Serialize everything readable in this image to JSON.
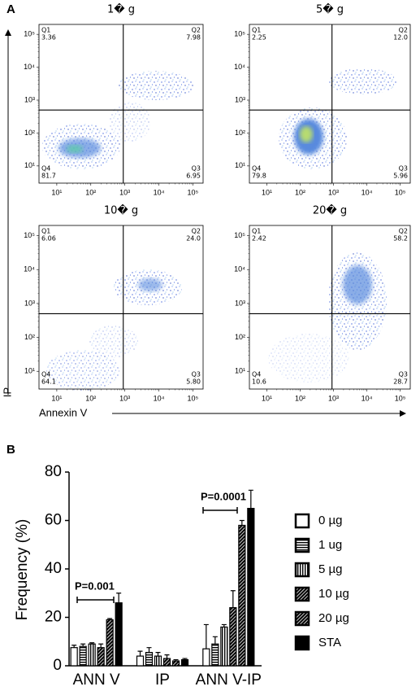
{
  "panel_labels": [
    "A",
    "B"
  ],
  "shared_axes": {
    "x_label": "Annexin V",
    "y_label": "IP"
  },
  "chart_data": [
    {
      "type": "quadrant",
      "title": "1� g",
      "xscale": "log",
      "yscale": "log",
      "xlim": [
        3,
        200000
      ],
      "ylim": [
        3,
        200000
      ],
      "xticks": [
        {
          "value": 10,
          "label": "10¹"
        },
        {
          "value": 100,
          "label": "10²"
        },
        {
          "value": 1000,
          "label": "10³"
        },
        {
          "value": 10000,
          "label": "10⁴"
        },
        {
          "value": 100000,
          "label": "10⁵"
        }
      ],
      "yticks": [
        {
          "value": 10,
          "label": "10¹"
        },
        {
          "value": 100,
          "label": "10²"
        },
        {
          "value": 1000,
          "label": "10³"
        },
        {
          "value": 10000,
          "label": "10⁴"
        },
        {
          "value": 100000,
          "label": "10⁵"
        }
      ],
      "xgate": 900,
      "ygate": 500,
      "categories": [
        "Q1",
        "Q2",
        "Q3",
        "Q4"
      ],
      "values": [
        3.36,
        7.98,
        6.95,
        81.7
      ],
      "value_labels": [
        "3.36",
        "7.98",
        "6.95",
        "81.7"
      ]
    },
    {
      "type": "quadrant",
      "title": "5� g",
      "xscale": "log",
      "yscale": "log",
      "xlim": [
        3,
        200000
      ],
      "ylim": [
        3,
        200000
      ],
      "xticks": [
        {
          "value": 10,
          "label": "10¹"
        },
        {
          "value": 100,
          "label": "10²"
        },
        {
          "value": 1000,
          "label": "10³"
        },
        {
          "value": 10000,
          "label": "10⁴"
        },
        {
          "value": 100000,
          "label": "10⁵"
        }
      ],
      "yticks": [
        {
          "value": 10,
          "label": "10¹"
        },
        {
          "value": 100,
          "label": "10²"
        },
        {
          "value": 1000,
          "label": "10³"
        },
        {
          "value": 10000,
          "label": "10⁴"
        },
        {
          "value": 100000,
          "label": "10⁵"
        }
      ],
      "xgate": 900,
      "ygate": 500,
      "categories": [
        "Q1",
        "Q2",
        "Q3",
        "Q4"
      ],
      "values": [
        2.25,
        12.0,
        5.96,
        79.8
      ],
      "value_labels": [
        "2.25",
        "12.0",
        "5.96",
        "79.8"
      ]
    },
    {
      "type": "quadrant",
      "title": "10� g",
      "xscale": "log",
      "yscale": "log",
      "xlim": [
        3,
        200000
      ],
      "ylim": [
        3,
        200000
      ],
      "xticks": [
        {
          "value": 10,
          "label": "10¹"
        },
        {
          "value": 100,
          "label": "10²"
        },
        {
          "value": 1000,
          "label": "10³"
        },
        {
          "value": 10000,
          "label": "10⁴"
        },
        {
          "value": 100000,
          "label": "10⁵"
        }
      ],
      "yticks": [
        {
          "value": 10,
          "label": "10¹"
        },
        {
          "value": 100,
          "label": "10²"
        },
        {
          "value": 1000,
          "label": "10³"
        },
        {
          "value": 10000,
          "label": "10⁴"
        },
        {
          "value": 100000,
          "label": "10⁵"
        }
      ],
      "xgate": 900,
      "ygate": 500,
      "categories": [
        "Q1",
        "Q2",
        "Q3",
        "Q4"
      ],
      "values": [
        6.06,
        24.0,
        5.8,
        64.1
      ],
      "value_labels": [
        "6.06",
        "24.0",
        "5.80",
        "64.1"
      ]
    },
    {
      "type": "quadrant",
      "title": "20� g",
      "xscale": "log",
      "yscale": "log",
      "xlim": [
        3,
        200000
      ],
      "ylim": [
        3,
        200000
      ],
      "xticks": [
        {
          "value": 10,
          "label": "10¹"
        },
        {
          "value": 100,
          "label": "10²"
        },
        {
          "value": 1000,
          "label": "10³"
        },
        {
          "value": 10000,
          "label": "10⁴"
        },
        {
          "value": 100000,
          "label": "10⁵"
        }
      ],
      "yticks": [
        {
          "value": 10,
          "label": "10¹"
        },
        {
          "value": 100,
          "label": "10²"
        },
        {
          "value": 1000,
          "label": "10³"
        },
        {
          "value": 10000,
          "label": "10⁴"
        },
        {
          "value": 100000,
          "label": "10⁵"
        }
      ],
      "xgate": 900,
      "ygate": 500,
      "categories": [
        "Q1",
        "Q2",
        "Q3",
        "Q4"
      ],
      "values": [
        2.42,
        58.2,
        28.7,
        10.6
      ],
      "value_labels": [
        "2.42",
        "58.2",
        "28.7",
        "10.6"
      ]
    },
    {
      "type": "bar",
      "y_label": "Frequency (%)",
      "categories": [
        "ANN V",
        "IP",
        "ANN V-IP"
      ],
      "ylim": [
        0,
        80
      ],
      "yticks": [
        0,
        20,
        40,
        60,
        80
      ],
      "annotations": [
        "P=0.001",
        "P=0.0001"
      ],
      "series": [
        {
          "name": "0 µg",
          "color": "#ffffff",
          "pattern": "none",
          "values": [
            7.5,
            4,
            7
          ],
          "errors": [
            1,
            2,
            10
          ]
        },
        {
          "name": "1 ug",
          "color": "#000000",
          "pattern": "horizontal",
          "values": [
            8,
            5.5,
            9
          ],
          "errors": [
            1,
            2,
            3
          ]
        },
        {
          "name": "5 µg",
          "color": "#000000",
          "pattern": "vertical",
          "values": [
            9,
            4,
            16
          ],
          "errors": [
            0.5,
            1.5,
            1
          ]
        },
        {
          "name": "10 µg",
          "color": "#000000",
          "pattern": "diagonal",
          "values": [
            7.5,
            3,
            24
          ],
          "errors": [
            1.5,
            1.5,
            7
          ]
        },
        {
          "name": "20 µg",
          "color": "#000000",
          "pattern": "diagonal",
          "values": [
            19,
            2,
            58
          ],
          "errors": [
            0.5,
            0.5,
            2
          ]
        },
        {
          "name": "STA",
          "color": "#000000",
          "pattern": "none",
          "values": [
            26,
            2.5,
            65
          ],
          "errors": [
            4,
            0.5,
            7.5
          ]
        }
      ]
    }
  ]
}
